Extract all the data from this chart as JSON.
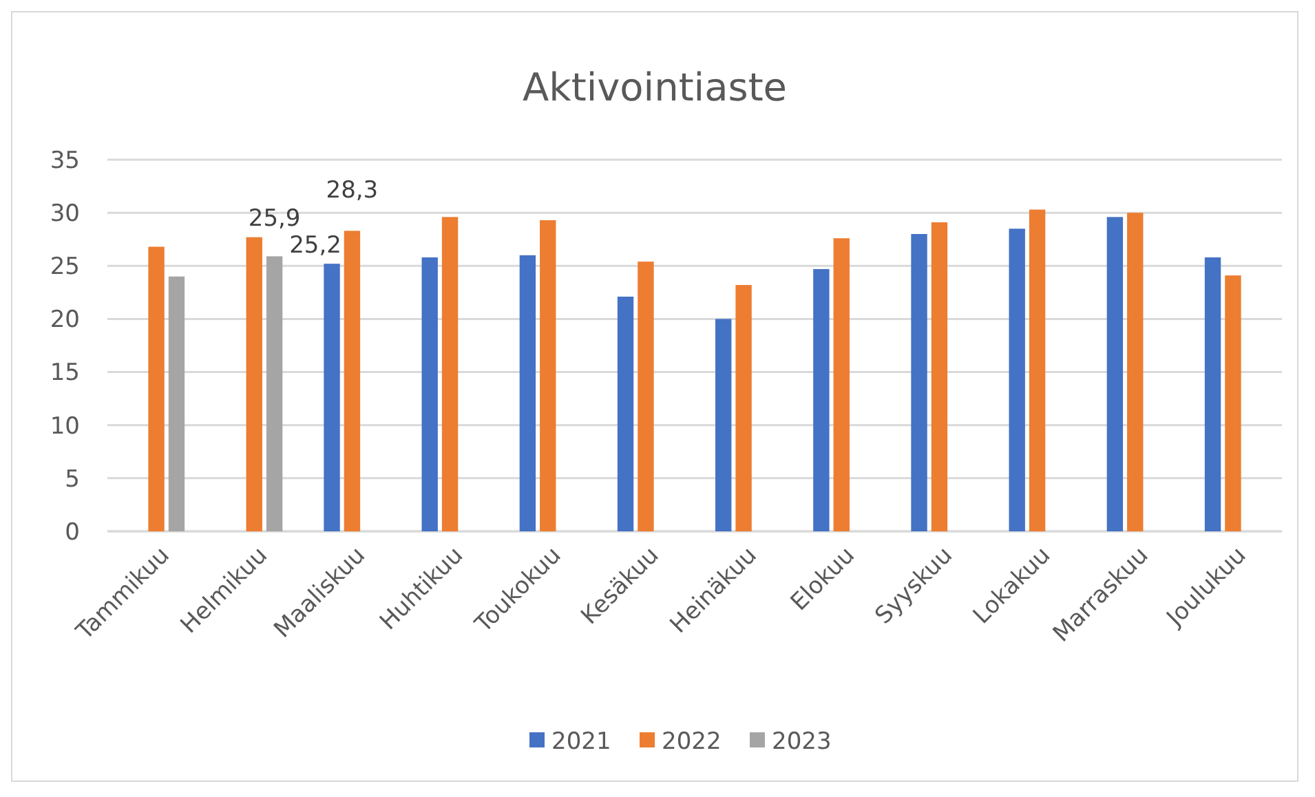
{
  "chart_data": {
    "type": "bar",
    "title": "Aktivointiaste",
    "categories": [
      "Tammikuu",
      "Helmikuu",
      "Maaliskuu",
      "Huhtikuu",
      "Toukokuu",
      "Kesäkuu",
      "Heinäkuu",
      "Elokuu",
      "Syyskuu",
      "Lokakuu",
      "Marraskuu",
      "Joulukuu"
    ],
    "series": [
      {
        "name": "2021",
        "color": "#4472c4",
        "values": [
          null,
          null,
          25.2,
          25.8,
          26.0,
          22.1,
          20.0,
          24.7,
          28.0,
          28.5,
          29.6,
          25.8
        ],
        "value_labels": [
          null,
          null,
          "25,2",
          null,
          null,
          null,
          null,
          null,
          null,
          null,
          null,
          null
        ]
      },
      {
        "name": "2022",
        "color": "#ed7d31",
        "values": [
          26.8,
          27.7,
          28.3,
          29.6,
          29.3,
          25.4,
          23.2,
          27.6,
          29.1,
          30.3,
          30.0,
          24.1
        ],
        "value_labels": [
          null,
          null,
          "28,3",
          null,
          null,
          null,
          null,
          null,
          null,
          null,
          null,
          null
        ]
      },
      {
        "name": "2023",
        "color": "#a5a5a5",
        "values": [
          24.0,
          25.9,
          null,
          null,
          null,
          null,
          null,
          null,
          null,
          null,
          null,
          null
        ],
        "value_labels": [
          null,
          "25,9",
          null,
          null,
          null,
          null,
          null,
          null,
          null,
          null,
          null,
          null
        ]
      }
    ],
    "ylim": [
      0,
      35
    ],
    "yticks": [
      0,
      5,
      10,
      15,
      20,
      25,
      30,
      35
    ],
    "grid": "y",
    "legend": "bottom"
  }
}
